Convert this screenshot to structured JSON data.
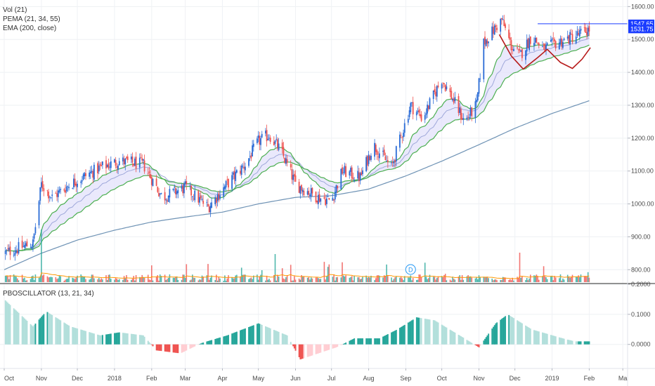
{
  "legend": {
    "vol": "Vol (21)",
    "pema": "PEMA (21, 34, 55)",
    "ema": "EMA (200, close)",
    "osc": "PBOSCILLATOR (13, 21, 34)"
  },
  "badges": {
    "dividend": "D",
    "price_high": "1547.65",
    "price_last": "1531.75"
  },
  "colors": {
    "up": "#2a6bd6",
    "down": "#ef5350",
    "pema_fast": "#c2185b",
    "pema_band": "#e3e1fb",
    "pema_slow": "#4caf50",
    "ema200": "#6f93b5",
    "vol_up": "#26a69a",
    "vol_down": "#ef5350",
    "vol_ma": "#ff9800",
    "osc_pos_strong": "#26a69a",
    "osc_pos_weak": "#b2dfdb",
    "osc_neg_strong": "#ef5350",
    "osc_neg_weak": "#ffcdd2",
    "axis_badge": "#1a3cff",
    "pattern_line": "#b71c1c"
  },
  "chart_data": [
    {
      "type": "candlestick",
      "y_ticks": [
        "1600.00",
        "1500.00",
        "1400.00",
        "1300.00",
        "1200.00",
        "1100.00",
        "1000.00",
        "900.00",
        "800.00"
      ],
      "ylim": [
        760,
        1620
      ],
      "x_ticks": [
        "Oct",
        "Nov",
        "Dec",
        "2018",
        "Feb",
        "Mar",
        "Apr",
        "May",
        "Jun",
        "Jul",
        "Aug",
        "Sep",
        "Oct",
        "Nov",
        "Dec",
        "2019",
        "Feb",
        "Ma"
      ],
      "price_anchors": [
        [
          "2017-10-01",
          850
        ],
        [
          "2017-10-25",
          880
        ],
        [
          "2017-11-01",
          1060
        ],
        [
          "2017-11-10",
          1020
        ],
        [
          "2017-11-25",
          1060
        ],
        [
          "2017-12-20",
          1110
        ],
        [
          "2018-01-05",
          1130
        ],
        [
          "2018-01-25",
          1120
        ],
        [
          "2018-02-10",
          1020
        ],
        [
          "2018-03-01",
          1050
        ],
        [
          "2018-03-20",
          990
        ],
        [
          "2018-04-05",
          1060
        ],
        [
          "2018-04-20",
          1120
        ],
        [
          "2018-05-01",
          1190
        ],
        [
          "2018-05-10",
          1210
        ],
        [
          "2018-05-20",
          1160
        ],
        [
          "2018-06-01",
          1060
        ],
        [
          "2018-06-20",
          1020
        ],
        [
          "2018-07-01",
          1010
        ],
        [
          "2018-07-10",
          1100
        ],
        [
          "2018-07-25",
          1080
        ],
        [
          "2018-08-05",
          1180
        ],
        [
          "2018-08-20",
          1110
        ],
        [
          "2018-09-05",
          1300
        ],
        [
          "2018-09-15",
          1260
        ],
        [
          "2018-10-01",
          1380
        ],
        [
          "2018-10-10",
          1320
        ],
        [
          "2018-10-20",
          1250
        ],
        [
          "2018-10-30",
          1300
        ],
        [
          "2018-11-05",
          1490
        ],
        [
          "2018-11-20",
          1560
        ],
        [
          "2018-11-28",
          1480
        ],
        [
          "2018-12-05",
          1450
        ],
        [
          "2018-12-15",
          1510
        ],
        [
          "2018-12-25",
          1470
        ],
        [
          "2019-01-05",
          1490
        ],
        [
          "2019-01-20",
          1510
        ],
        [
          "2019-02-02",
          1532
        ]
      ],
      "ema200_anchors": [
        [
          "2017-10-01",
          800
        ],
        [
          "2017-11-01",
          850
        ],
        [
          "2017-12-01",
          890
        ],
        [
          "2018-01-01",
          920
        ],
        [
          "2018-02-01",
          945
        ],
        [
          "2018-03-01",
          960
        ],
        [
          "2018-04-01",
          975
        ],
        [
          "2018-05-01",
          1000
        ],
        [
          "2018-06-01",
          1020
        ],
        [
          "2018-07-01",
          1025
        ],
        [
          "2018-08-01",
          1045
        ],
        [
          "2018-09-01",
          1085
        ],
        [
          "2018-10-01",
          1130
        ],
        [
          "2018-11-01",
          1180
        ],
        [
          "2018-12-01",
          1230
        ],
        [
          "2019-01-01",
          1275
        ],
        [
          "2019-02-02",
          1315
        ]
      ],
      "resistance": 1547.65,
      "last": 1531.75
    },
    {
      "type": "histogram",
      "name": "PBOSCILLATOR",
      "y_ticks": [
        "0.2000",
        "0.1000",
        "0.0000"
      ],
      "ylim": [
        -0.08,
        0.2
      ],
      "anchors": [
        [
          "2017-10-01",
          0.15
        ],
        [
          "2017-10-25",
          0.06
        ],
        [
          "2017-11-05",
          0.11
        ],
        [
          "2017-11-25",
          0.06
        ],
        [
          "2017-12-20",
          0.03
        ],
        [
          "2018-01-05",
          0.04
        ],
        [
          "2018-01-25",
          0.03
        ],
        [
          "2018-02-05",
          -0.02
        ],
        [
          "2018-02-25",
          -0.03
        ],
        [
          "2018-03-15",
          0.005
        ],
        [
          "2018-04-05",
          0.03
        ],
        [
          "2018-05-01",
          0.07
        ],
        [
          "2018-05-25",
          0.03
        ],
        [
          "2018-06-05",
          -0.05
        ],
        [
          "2018-06-20",
          -0.03
        ],
        [
          "2018-07-05",
          -0.01
        ],
        [
          "2018-07-20",
          0.02
        ],
        [
          "2018-08-10",
          0.02
        ],
        [
          "2018-08-25",
          0.05
        ],
        [
          "2018-09-10",
          0.09
        ],
        [
          "2018-09-25",
          0.08
        ],
        [
          "2018-10-20",
          0.02
        ],
        [
          "2018-11-01",
          -0.01
        ],
        [
          "2018-11-15",
          0.07
        ],
        [
          "2018-11-25",
          0.1
        ],
        [
          "2018-12-15",
          0.05
        ],
        [
          "2019-01-10",
          0.02
        ],
        [
          "2019-01-20",
          0.01
        ],
        [
          "2019-02-02",
          0.01
        ]
      ]
    }
  ]
}
